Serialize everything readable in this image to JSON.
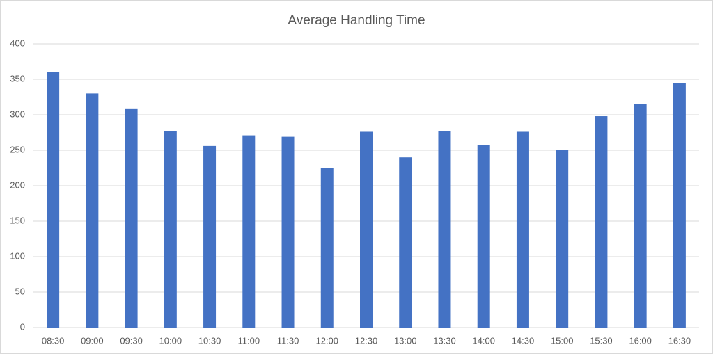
{
  "chart_data": {
    "type": "bar",
    "title": "Average Handling Time",
    "categories": [
      "08:30",
      "09:00",
      "09:30",
      "10:00",
      "10:30",
      "11:00",
      "11:30",
      "12:00",
      "12:30",
      "13:00",
      "13:30",
      "14:00",
      "14:30",
      "15:00",
      "15:30",
      "16:00",
      "16:30"
    ],
    "values": [
      360,
      330,
      308,
      277,
      256,
      271,
      269,
      225,
      276,
      240,
      277,
      257,
      276,
      250,
      298,
      315,
      345
    ],
    "color": "#4472c4",
    "ylim": [
      0,
      400
    ],
    "yticks": [
      0,
      50,
      100,
      150,
      200,
      250,
      300,
      350,
      400
    ],
    "grid": true
  }
}
